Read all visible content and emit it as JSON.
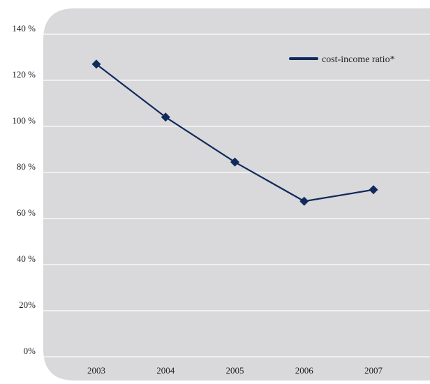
{
  "colors": {
    "panel": "#d9d9db",
    "gridline": "#ffffff",
    "series": "#102a5c"
  },
  "chart_data": {
    "type": "line",
    "title": "",
    "xlabel": "",
    "ylabel": "",
    "categories": [
      "2003",
      "2004",
      "2005",
      "2006",
      "2007"
    ],
    "y_tick_labels": [
      "0%",
      "20%",
      "40 %",
      "60 %",
      "80 %",
      "100 %",
      "120 %",
      "140 %"
    ],
    "y_ticks": [
      0,
      20,
      40,
      60,
      80,
      100,
      120,
      140
    ],
    "ylim": [
      0,
      140
    ],
    "grid": true,
    "legend_position": "top-right",
    "series": [
      {
        "name": "cost-income ratio*",
        "marker": "diamond",
        "values": [
          127,
          104,
          84.5,
          67.5,
          72.5
        ]
      }
    ]
  }
}
